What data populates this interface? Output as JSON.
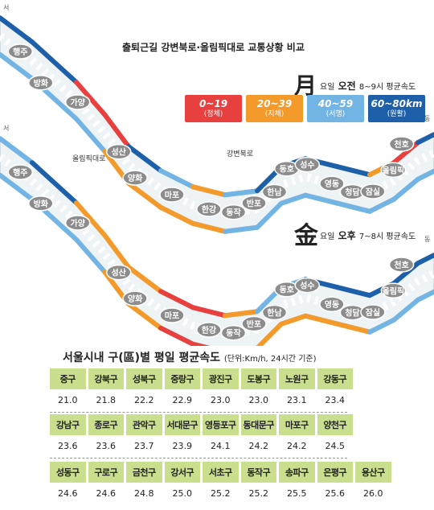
{
  "title": "출퇴근길 강변북로·올림픽대로 교통상황 비교",
  "morning": {
    "day": "月",
    "suffix": "요일",
    "period": "오전",
    "range": "8~9시 평균속도"
  },
  "evening": {
    "day": "金",
    "suffix": "요일",
    "period": "오후",
    "range": "7~8시 평균속도"
  },
  "legend": [
    {
      "range": "0~19",
      "label": "(정체)",
      "color": "#e8403f"
    },
    {
      "range": "20~39",
      "label": "(지체)",
      "color": "#f39a2b"
    },
    {
      "range": "40~59",
      "label": "(서행)",
      "color": "#72b4e3"
    },
    {
      "range": "60~80km",
      "label": "(원활)",
      "color": "#1d5fa8"
    }
  ],
  "map_labels": {
    "west": "서",
    "east": "동",
    "olympic_road": "올림픽대로",
    "gangbyeon_road": "강변북로"
  },
  "places": [
    "행주",
    "방화",
    "가양",
    "성산",
    "양화",
    "마포",
    "한강",
    "동작",
    "반포",
    "한남",
    "동호",
    "성수",
    "영동",
    "청담",
    "잠실",
    "천호",
    "올림픽"
  ],
  "table": {
    "title": "서울시내 구(區)별 평일 평균속도",
    "unit": "(단위:Km/h, 24시간 기준)",
    "rows": [
      {
        "names": [
          "중구",
          "강북구",
          "성북구",
          "중랑구",
          "광진구",
          "도봉구",
          "노원구",
          "강동구"
        ],
        "values": [
          "21.0",
          "21.8",
          "22.2",
          "22.9",
          "23.0",
          "23.0",
          "23.1",
          "23.4"
        ]
      },
      {
        "names": [
          "강남구",
          "종로구",
          "관악구",
          "서대문구",
          "영등포구",
          "동대문구",
          "마포구",
          "양천구"
        ],
        "values": [
          "23.6",
          "23.6",
          "23.7",
          "23.9",
          "24.1",
          "24.2",
          "24.2",
          "24.5"
        ]
      },
      {
        "names": [
          "성동구",
          "구로구",
          "금천구",
          "강서구",
          "서초구",
          "동작구",
          "송파구",
          "은평구",
          "용산구"
        ],
        "values": [
          "24.6",
          "24.6",
          "24.8",
          "25.0",
          "25.2",
          "25.2",
          "25.5",
          "25.6",
          "26.0"
        ]
      }
    ]
  }
}
